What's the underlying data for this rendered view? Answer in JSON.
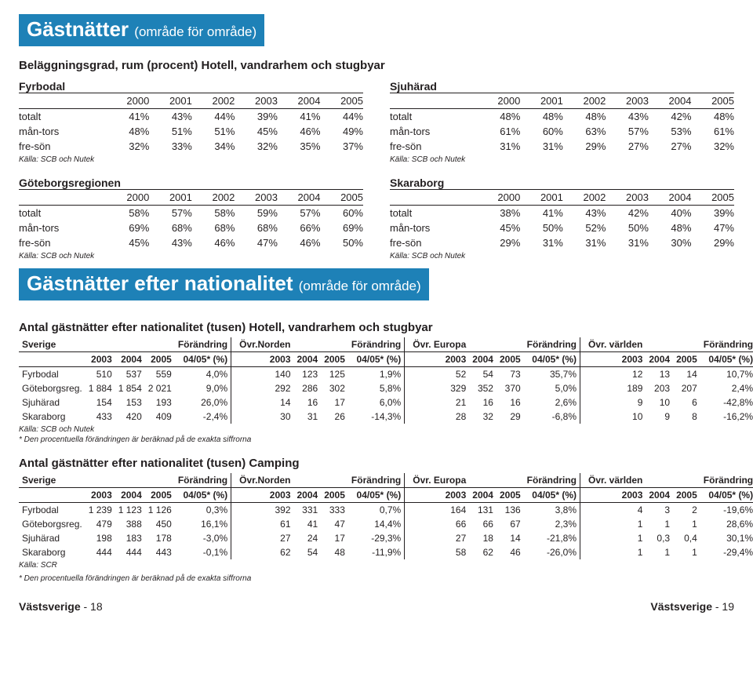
{
  "colors": {
    "brand": "#1e81b7",
    "text": "#231f20",
    "bg": "#ffffff",
    "rule": "#231f20"
  },
  "section1": {
    "title": "Gästnätter",
    "sub": "(område för område)",
    "subhead": "Beläggningsgrad, rum (procent) Hotell, vandrarhem och stugbyar",
    "years": [
      "2000",
      "2001",
      "2002",
      "2003",
      "2004",
      "2005"
    ],
    "source": "Källa: SCB och Nutek",
    "regions": {
      "fyrbodal": {
        "name": "Fyrbodal",
        "rows": [
          {
            "lbl": "totalt",
            "v": [
              "41%",
              "43%",
              "44%",
              "39%",
              "41%",
              "44%"
            ]
          },
          {
            "lbl": "mån-tors",
            "v": [
              "48%",
              "51%",
              "51%",
              "45%",
              "46%",
              "49%"
            ]
          },
          {
            "lbl": "fre-sön",
            "v": [
              "32%",
              "33%",
              "34%",
              "32%",
              "35%",
              "37%"
            ]
          }
        ]
      },
      "sjuharad": {
        "name": "Sjuhärad",
        "rows": [
          {
            "lbl": "totalt",
            "v": [
              "48%",
              "48%",
              "48%",
              "43%",
              "42%",
              "48%"
            ]
          },
          {
            "lbl": "mån-tors",
            "v": [
              "61%",
              "60%",
              "63%",
              "57%",
              "53%",
              "61%"
            ]
          },
          {
            "lbl": "fre-sön",
            "v": [
              "31%",
              "31%",
              "29%",
              "27%",
              "27%",
              "32%"
            ]
          }
        ]
      },
      "goteborg": {
        "name": "Göteborgsregionen",
        "rows": [
          {
            "lbl": "totalt",
            "v": [
              "58%",
              "57%",
              "58%",
              "59%",
              "57%",
              "60%"
            ]
          },
          {
            "lbl": "mån-tors",
            "v": [
              "69%",
              "68%",
              "68%",
              "68%",
              "66%",
              "69%"
            ]
          },
          {
            "lbl": "fre-sön",
            "v": [
              "45%",
              "43%",
              "46%",
              "47%",
              "46%",
              "50%"
            ]
          }
        ]
      },
      "skaraborg": {
        "name": "Skaraborg",
        "rows": [
          {
            "lbl": "totalt",
            "v": [
              "38%",
              "41%",
              "43%",
              "42%",
              "40%",
              "39%"
            ]
          },
          {
            "lbl": "mån-tors",
            "v": [
              "45%",
              "50%",
              "52%",
              "50%",
              "48%",
              "47%"
            ]
          },
          {
            "lbl": "fre-sön",
            "v": [
              "29%",
              "31%",
              "31%",
              "31%",
              "30%",
              "29%"
            ]
          }
        ]
      }
    }
  },
  "section2": {
    "title": "Gästnätter efter nationalitet",
    "sub": "(område för område)",
    "table1": {
      "subhead": "Antal gästnätter efter nationalitet (tusen) Hotell, vandrarhem och stugbyar",
      "groups": [
        "Sverige",
        "Övr.Norden",
        "Övr. Europa",
        "Övr. världen"
      ],
      "change": "Förändring",
      "yearcols": [
        "2003",
        "2004",
        "2005",
        "04/05* (%)"
      ],
      "rows": [
        {
          "lbl": "Fyrbodal",
          "g": [
            [
              "510",
              "537",
              "559",
              "4,0%"
            ],
            [
              "140",
              "123",
              "125",
              "1,9%"
            ],
            [
              "52",
              "54",
              "73",
              "35,7%"
            ],
            [
              "12",
              "13",
              "14",
              "10,7%"
            ]
          ]
        },
        {
          "lbl": "Göteborgsreg.",
          "g": [
            [
              "1 884",
              "1 854",
              "2 021",
              "9,0%"
            ],
            [
              "292",
              "286",
              "302",
              "5,8%"
            ],
            [
              "329",
              "352",
              "370",
              "5,0%"
            ],
            [
              "189",
              "203",
              "207",
              "2,4%"
            ]
          ]
        },
        {
          "lbl": "Sjuhärad",
          "g": [
            [
              "154",
              "153",
              "193",
              "26,0%"
            ],
            [
              "14",
              "16",
              "17",
              "6,0%"
            ],
            [
              "21",
              "16",
              "16",
              "2,6%"
            ],
            [
              "9",
              "10",
              "6",
              "-42,8%"
            ]
          ]
        },
        {
          "lbl": "Skaraborg",
          "g": [
            [
              "433",
              "420",
              "409",
              "-2,4%"
            ],
            [
              "30",
              "31",
              "26",
              "-14,3%"
            ],
            [
              "28",
              "32",
              "29",
              "-6,8%"
            ],
            [
              "10",
              "9",
              "8",
              "-16,2%"
            ]
          ]
        }
      ],
      "source": "Källa: SCB och Nutek",
      "note": "* Den procentuella förändringen är beräknad på de exakta siffrorna"
    },
    "table2": {
      "subhead": "Antal gästnätter efter nationalitet (tusen)    Camping",
      "groups": [
        "Sverige",
        "Övr.Norden",
        "Övr. Europa",
        "Övr. världen"
      ],
      "change": "Förändring",
      "yearcols": [
        "2003",
        "2004",
        "2005",
        "04/05* (%)"
      ],
      "rows": [
        {
          "lbl": "Fyrbodal",
          "g": [
            [
              "1 239",
              "1 123",
              "1 126",
              "0,3%"
            ],
            [
              "392",
              "331",
              "333",
              "0,7%"
            ],
            [
              "164",
              "131",
              "136",
              "3,8%"
            ],
            [
              "4",
              "3",
              "2",
              "-19,6%"
            ]
          ]
        },
        {
          "lbl": "Göteborgsreg.",
          "g": [
            [
              "479",
              "388",
              "450",
              "16,1%"
            ],
            [
              "61",
              "41",
              "47",
              "14,4%"
            ],
            [
              "66",
              "66",
              "67",
              "2,3%"
            ],
            [
              "1",
              "1",
              "1",
              "28,6%"
            ]
          ]
        },
        {
          "lbl": "Sjuhärad",
          "g": [
            [
              "198",
              "183",
              "178",
              "-3,0%"
            ],
            [
              "27",
              "24",
              "17",
              "-29,3%"
            ],
            [
              "27",
              "18",
              "14",
              "-21,8%"
            ],
            [
              "1",
              "0,3",
              "0,4",
              "30,1%"
            ]
          ]
        },
        {
          "lbl": "Skaraborg",
          "g": [
            [
              "444",
              "444",
              "443",
              "-0,1%"
            ],
            [
              "62",
              "54",
              "48",
              "-11,9%"
            ],
            [
              "58",
              "62",
              "46",
              "-26,0%"
            ],
            [
              "1",
              "1",
              "1",
              "-29,4%"
            ]
          ]
        }
      ],
      "source": "Källa: SCR",
      "note": "* Den procentuella förändringen är beräknad på de exakta siffrorna"
    }
  },
  "footer": {
    "brand": "Västsverige",
    "left": "- 18",
    "right": "- 19"
  }
}
